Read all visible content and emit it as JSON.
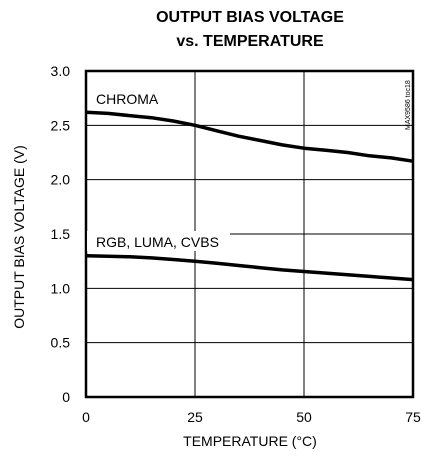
{
  "chart_data": {
    "type": "line",
    "title": "OUTPUT BIAS VOLTAGE",
    "subtitle": "vs. TEMPERATURE",
    "xlabel": "TEMPERATURE (°C)",
    "ylabel": "OUTPUT BIAS VOLTAGE (V)",
    "xlim": [
      0,
      75
    ],
    "ylim": [
      0,
      3.0
    ],
    "xticks": [
      0,
      25,
      50,
      75
    ],
    "xtick_labels": [
      "0",
      "25",
      "50",
      "75"
    ],
    "yticks": [
      0,
      0.5,
      1.0,
      1.5,
      2.0,
      2.5,
      3.0
    ],
    "ytick_labels": [
      "0",
      "0.5",
      "1.0",
      "1.5",
      "2.0",
      "2.5",
      "3.0"
    ],
    "grid": true,
    "side_code": "MAX9586 toc18",
    "series": [
      {
        "name": "CHROMA",
        "x": [
          0,
          5,
          10,
          15,
          20,
          25,
          30,
          35,
          40,
          45,
          50,
          55,
          60,
          65,
          70,
          75
        ],
        "y": [
          2.62,
          2.61,
          2.59,
          2.57,
          2.54,
          2.5,
          2.45,
          2.4,
          2.36,
          2.32,
          2.29,
          2.27,
          2.25,
          2.22,
          2.2,
          2.17
        ]
      },
      {
        "name": "RGB, LUMA, CVBS",
        "x": [
          0,
          5,
          10,
          15,
          20,
          25,
          30,
          35,
          40,
          45,
          50,
          55,
          60,
          65,
          70,
          75
        ],
        "y": [
          1.3,
          1.295,
          1.29,
          1.28,
          1.265,
          1.25,
          1.23,
          1.21,
          1.19,
          1.17,
          1.155,
          1.14,
          1.125,
          1.11,
          1.095,
          1.08
        ]
      }
    ]
  }
}
